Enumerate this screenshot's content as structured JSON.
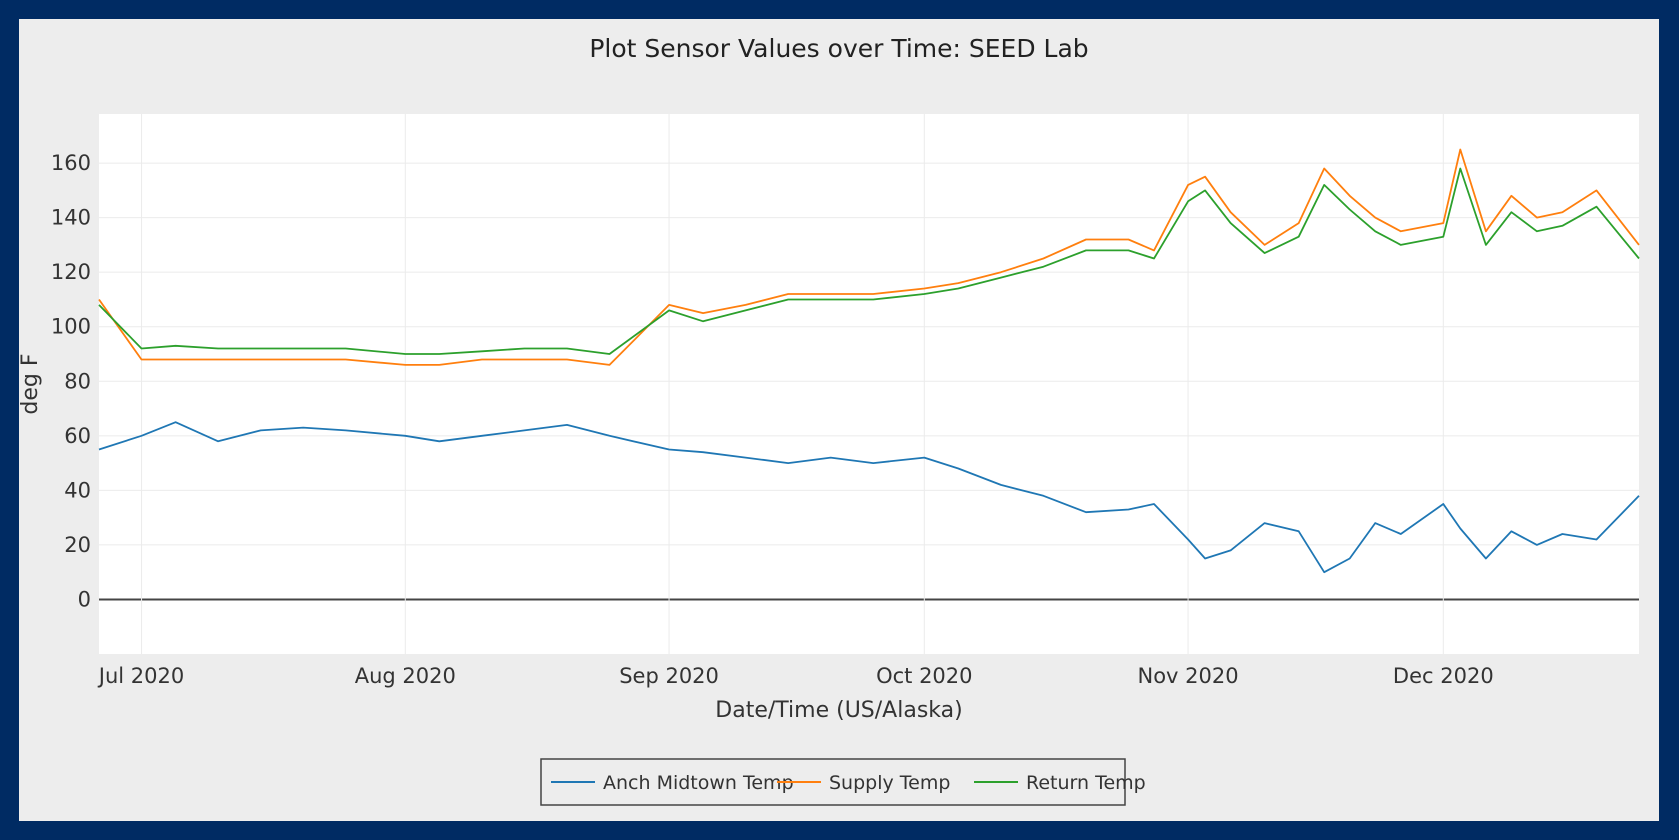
{
  "chart_data": {
    "type": "line",
    "title": "Plot Sensor Values over Time: SEED Lab",
    "xlabel": "Date/Time (US/Alaska)",
    "ylabel": "deg F",
    "xlim": [
      "2020-06-26",
      "2020-12-24"
    ],
    "ylim": [
      -20,
      178
    ],
    "x_ticks": [
      {
        "date": "2020-07-01",
        "label": "Jul 2020"
      },
      {
        "date": "2020-08-01",
        "label": "Aug 2020"
      },
      {
        "date": "2020-09-01",
        "label": "Sep 2020"
      },
      {
        "date": "2020-10-01",
        "label": "Oct 2020"
      },
      {
        "date": "2020-11-01",
        "label": "Nov 2020"
      },
      {
        "date": "2020-12-01",
        "label": "Dec 2020"
      }
    ],
    "y_ticks": [
      0,
      20,
      40,
      60,
      80,
      100,
      120,
      140,
      160
    ],
    "grid": true,
    "legend": "bottom-center",
    "series": [
      {
        "name": "Anch Midtown Temp",
        "color": "#1f77b4",
        "x": [
          "2020-06-26",
          "2020-07-01",
          "2020-07-05",
          "2020-07-10",
          "2020-07-15",
          "2020-07-20",
          "2020-07-25",
          "2020-08-01",
          "2020-08-05",
          "2020-08-10",
          "2020-08-15",
          "2020-08-20",
          "2020-08-25",
          "2020-09-01",
          "2020-09-05",
          "2020-09-10",
          "2020-09-15",
          "2020-09-20",
          "2020-09-25",
          "2020-10-01",
          "2020-10-05",
          "2020-10-10",
          "2020-10-15",
          "2020-10-20",
          "2020-10-25",
          "2020-10-28",
          "2020-11-01",
          "2020-11-03",
          "2020-11-06",
          "2020-11-10",
          "2020-11-14",
          "2020-11-17",
          "2020-11-20",
          "2020-11-23",
          "2020-11-26",
          "2020-12-01",
          "2020-12-03",
          "2020-12-06",
          "2020-12-09",
          "2020-12-12",
          "2020-12-15",
          "2020-12-19",
          "2020-12-24"
        ],
        "values": [
          55,
          60,
          65,
          58,
          62,
          63,
          62,
          60,
          58,
          60,
          62,
          64,
          60,
          55,
          54,
          52,
          50,
          52,
          50,
          52,
          48,
          42,
          38,
          32,
          33,
          35,
          22,
          15,
          18,
          28,
          25,
          10,
          15,
          28,
          24,
          35,
          26,
          15,
          25,
          20,
          24,
          22,
          38
        ]
      },
      {
        "name": "Supply Temp",
        "color": "#ff7f0e",
        "x": [
          "2020-06-26",
          "2020-07-01",
          "2020-07-05",
          "2020-07-10",
          "2020-07-15",
          "2020-07-20",
          "2020-07-25",
          "2020-08-01",
          "2020-08-05",
          "2020-08-10",
          "2020-08-15",
          "2020-08-20",
          "2020-08-25",
          "2020-09-01",
          "2020-09-05",
          "2020-09-10",
          "2020-09-15",
          "2020-09-20",
          "2020-09-25",
          "2020-10-01",
          "2020-10-05",
          "2020-10-10",
          "2020-10-15",
          "2020-10-20",
          "2020-10-25",
          "2020-10-28",
          "2020-11-01",
          "2020-11-03",
          "2020-11-06",
          "2020-11-10",
          "2020-11-14",
          "2020-11-17",
          "2020-11-20",
          "2020-11-23",
          "2020-11-26",
          "2020-12-01",
          "2020-12-03",
          "2020-12-06",
          "2020-12-09",
          "2020-12-12",
          "2020-12-15",
          "2020-12-19",
          "2020-12-24"
        ],
        "values": [
          110,
          88,
          88,
          88,
          88,
          88,
          88,
          86,
          86,
          88,
          88,
          88,
          86,
          108,
          105,
          108,
          112,
          112,
          112,
          114,
          116,
          120,
          125,
          132,
          132,
          128,
          152,
          155,
          142,
          130,
          138,
          158,
          148,
          140,
          135,
          138,
          165,
          135,
          148,
          140,
          142,
          150,
          130
        ]
      },
      {
        "name": "Return Temp",
        "color": "#2ca02c",
        "x": [
          "2020-06-26",
          "2020-07-01",
          "2020-07-05",
          "2020-07-10",
          "2020-07-15",
          "2020-07-20",
          "2020-07-25",
          "2020-08-01",
          "2020-08-05",
          "2020-08-10",
          "2020-08-15",
          "2020-08-20",
          "2020-08-25",
          "2020-09-01",
          "2020-09-05",
          "2020-09-10",
          "2020-09-15",
          "2020-09-20",
          "2020-09-25",
          "2020-10-01",
          "2020-10-05",
          "2020-10-10",
          "2020-10-15",
          "2020-10-20",
          "2020-10-25",
          "2020-10-28",
          "2020-11-01",
          "2020-11-03",
          "2020-11-06",
          "2020-11-10",
          "2020-11-14",
          "2020-11-17",
          "2020-11-20",
          "2020-11-23",
          "2020-11-26",
          "2020-12-01",
          "2020-12-03",
          "2020-12-06",
          "2020-12-09",
          "2020-12-12",
          "2020-12-15",
          "2020-12-19",
          "2020-12-24"
        ],
        "values": [
          108,
          92,
          93,
          92,
          92,
          92,
          92,
          90,
          90,
          91,
          92,
          92,
          90,
          106,
          102,
          106,
          110,
          110,
          110,
          112,
          114,
          118,
          122,
          128,
          128,
          125,
          146,
          150,
          138,
          127,
          133,
          152,
          143,
          135,
          130,
          133,
          158,
          130,
          142,
          135,
          137,
          144,
          125
        ]
      }
    ]
  }
}
